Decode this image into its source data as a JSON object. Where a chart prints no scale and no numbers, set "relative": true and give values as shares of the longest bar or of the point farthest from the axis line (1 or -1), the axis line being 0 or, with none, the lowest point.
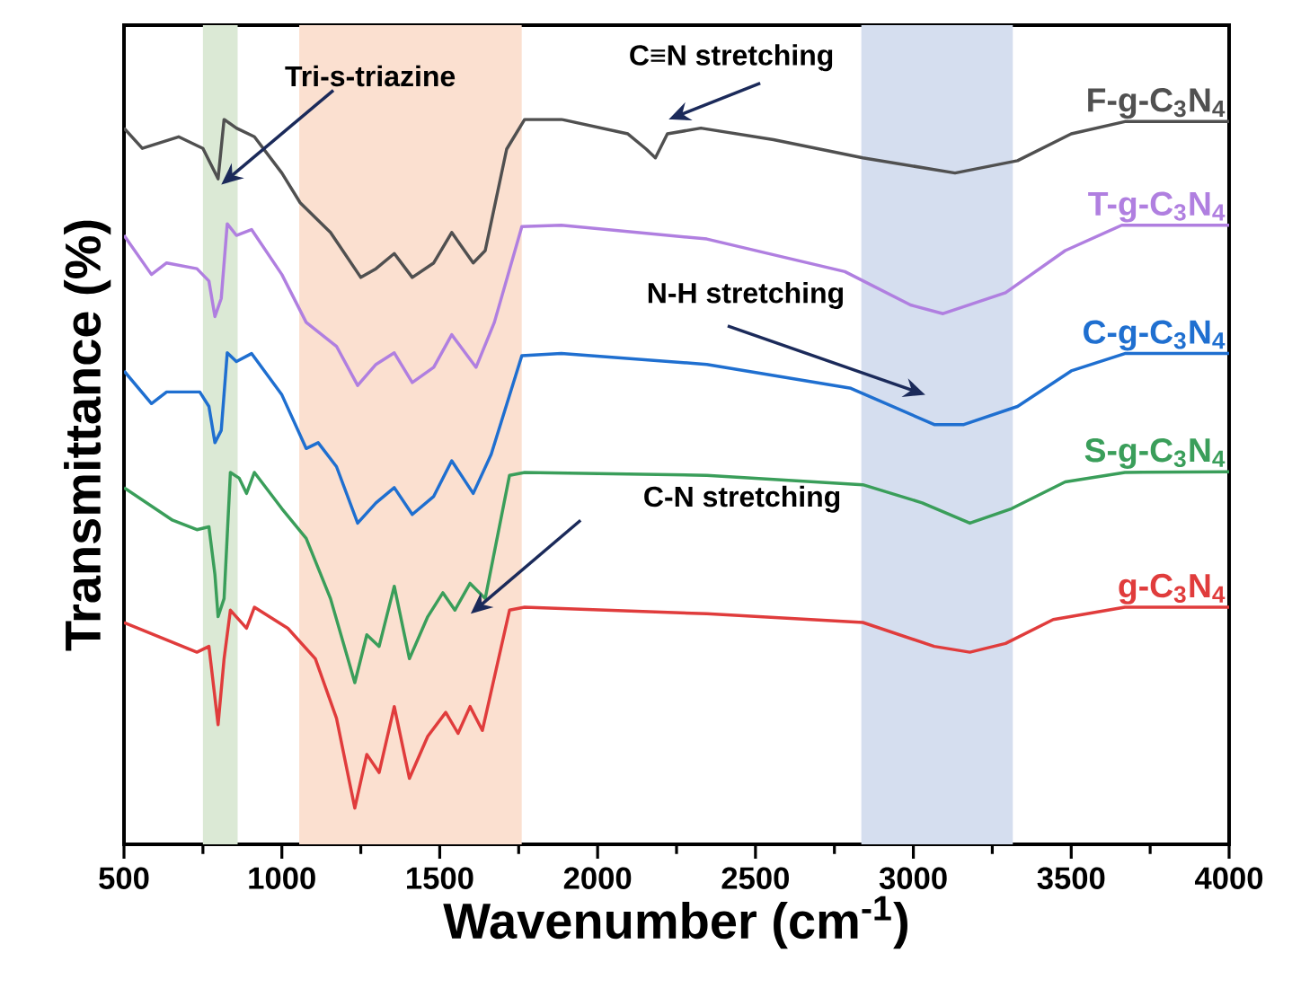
{
  "chart_data": {
    "type": "line",
    "relative": true,
    "xlabel": "Wavenumber (cm$^{-1}$)",
    "ylabel": "Transmittance (%)",
    "xlim": [
      500,
      4000
    ],
    "xticks": [
      500,
      1000,
      1500,
      2000,
      2500,
      3000,
      3500,
      4000
    ],
    "series": [
      {
        "name": "F-g-C$_{3}$N$_{4}$",
        "color": "#505050",
        "x": [
          500,
          558,
          673,
          750,
          798,
          817,
          856,
          913,
          1000,
          1058,
          1154,
          1250,
          1298,
          1356,
          1413,
          1481,
          1538,
          1606,
          1644,
          1712,
          1769,
          1885,
          2096,
          2154,
          2183,
          2221,
          2327,
          2557,
          2840,
          3132,
          3330,
          3500,
          3670,
          4000
        ],
        "values": [
          0.988,
          0.96,
          0.976,
          0.96,
          0.918,
          1.0,
          0.988,
          0.976,
          0.926,
          0.885,
          0.844,
          0.782,
          0.794,
          0.815,
          0.782,
          0.802,
          0.844,
          0.802,
          0.819,
          0.959,
          1.0,
          1.0,
          0.98,
          0.959,
          0.947,
          0.98,
          0.988,
          0.972,
          0.947,
          0.926,
          0.943,
          0.98,
          0.997,
          0.997
        ]
      },
      {
        "name": "T-g-C$_{3}$N$_{4}$",
        "color": "#b07fe0",
        "x": [
          500,
          587,
          635,
          731,
          769,
          788,
          808,
          827,
          856,
          904,
          1000,
          1077,
          1173,
          1240,
          1298,
          1356,
          1413,
          1481,
          1538,
          1615,
          1673,
          1760,
          1885,
          2346,
          2783,
          2991,
          3094,
          3292,
          3481,
          3660,
          4000
        ],
        "values": [
          0.84,
          0.786,
          0.802,
          0.794,
          0.777,
          0.728,
          0.753,
          0.856,
          0.84,
          0.848,
          0.786,
          0.72,
          0.687,
          0.633,
          0.662,
          0.678,
          0.637,
          0.658,
          0.703,
          0.658,
          0.72,
          0.852,
          0.854,
          0.835,
          0.79,
          0.744,
          0.732,
          0.761,
          0.819,
          0.854,
          0.854
        ]
      },
      {
        "name": "C-g-C$_{3}$N$_{4}$",
        "color": "#1f6fd0",
        "x": [
          500,
          587,
          635,
          740,
          769,
          788,
          808,
          827,
          856,
          904,
          1000,
          1077,
          1115,
          1173,
          1240,
          1298,
          1356,
          1413,
          1481,
          1538,
          1606,
          1663,
          1760,
          1885,
          2346,
          2802,
          3066,
          3160,
          3330,
          3500,
          3670,
          4000
        ],
        "values": [
          0.653,
          0.608,
          0.624,
          0.624,
          0.604,
          0.554,
          0.571,
          0.678,
          0.666,
          0.677,
          0.62,
          0.546,
          0.554,
          0.521,
          0.443,
          0.471,
          0.492,
          0.455,
          0.48,
          0.529,
          0.484,
          0.538,
          0.674,
          0.677,
          0.662,
          0.629,
          0.579,
          0.579,
          0.604,
          0.653,
          0.677,
          0.677
        ]
      },
      {
        "name": "S-g-C$_{3}$N$_{4}$",
        "color": "#3a9e5a",
        "x": [
          500,
          654,
          731,
          769,
          788,
          798,
          817,
          837,
          865,
          888,
          913,
          1000,
          1077,
          1154,
          1231,
          1269,
          1308,
          1356,
          1404,
          1462,
          1510,
          1548,
          1596,
          1644,
          1721,
          1769,
          2346,
          2840,
          3028,
          3179,
          3311,
          3481,
          3670,
          4000
        ],
        "values": [
          0.492,
          0.447,
          0.434,
          0.438,
          0.372,
          0.314,
          0.339,
          0.513,
          0.505,
          0.484,
          0.513,
          0.463,
          0.422,
          0.339,
          0.223,
          0.289,
          0.273,
          0.356,
          0.256,
          0.314,
          0.347,
          0.323,
          0.36,
          0.339,
          0.509,
          0.513,
          0.509,
          0.496,
          0.471,
          0.443,
          0.463,
          0.5,
          0.513,
          0.514
        ]
      },
      {
        "name": "g-C$_{3}$N$_{4}$",
        "color": "#e03c3c",
        "x": [
          500,
          731,
          769,
          798,
          817,
          837,
          888,
          913,
          1019,
          1106,
          1173,
          1231,
          1269,
          1308,
          1356,
          1404,
          1462,
          1519,
          1558,
          1596,
          1635,
          1721,
          1769,
          2346,
          2840,
          3066,
          3179,
          3292,
          3443,
          3670,
          4000
        ],
        "values": [
          0.306,
          0.265,
          0.273,
          0.165,
          0.256,
          0.323,
          0.298,
          0.327,
          0.298,
          0.256,
          0.174,
          0.05,
          0.124,
          0.099,
          0.19,
          0.091,
          0.149,
          0.182,
          0.153,
          0.19,
          0.157,
          0.323,
          0.327,
          0.318,
          0.306,
          0.273,
          0.265,
          0.277,
          0.31,
          0.327,
          0.327
        ]
      }
    ],
    "bands": [
      {
        "axis": "x",
        "from": 750,
        "to": 860,
        "color": "#dbe9d5"
      },
      {
        "axis": "x",
        "from": 1055,
        "to": 1760,
        "color": "#fbe0d0"
      },
      {
        "axis": "x",
        "from": 2835,
        "to": 3315,
        "color": "#d5deef"
      }
    ],
    "annotations": [
      "Tri-s-triazine",
      "C≡N stretching",
      "N-H stretching",
      "C-N stretching"
    ]
  }
}
